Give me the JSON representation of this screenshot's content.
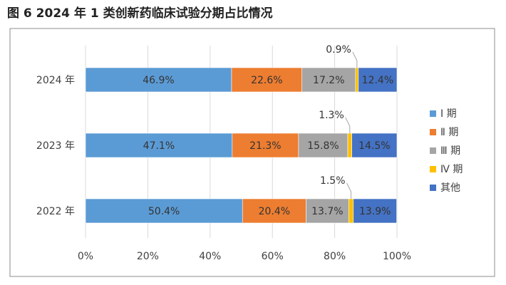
{
  "figure": {
    "title": "图 6   2024 年 1 类创新药临床试验分期占比情况"
  },
  "chart_data": {
    "type": "bar",
    "orientation": "horizontal",
    "stacked": true,
    "percent": true,
    "categories": [
      "2024 年",
      "2023 年",
      "2022 年"
    ],
    "xlim": [
      0,
      100
    ],
    "xticks": [
      "0%",
      "20%",
      "40%",
      "60%",
      "80%",
      "100%"
    ],
    "grid": true,
    "legend_position": "right",
    "series": [
      {
        "name": "Ⅰ 期",
        "color": "#5B9BD5",
        "values": [
          46.9,
          47.1,
          50.4
        ],
        "labels": [
          "46.9%",
          "47.1%",
          "50.4%"
        ]
      },
      {
        "name": "Ⅱ 期",
        "color": "#ED7D31",
        "values": [
          22.6,
          21.3,
          20.4
        ],
        "labels": [
          "22.6%",
          "21.3%",
          "20.4%"
        ]
      },
      {
        "name": "Ⅲ 期",
        "color": "#A5A5A5",
        "values": [
          17.2,
          15.8,
          13.7
        ],
        "labels": [
          "17.2%",
          "15.8%",
          "13.7%"
        ]
      },
      {
        "name": "Ⅳ 期",
        "color": "#FFC000",
        "values": [
          0.9,
          1.3,
          1.5
        ],
        "labels": [
          "0.9%",
          "1.3%",
          "1.5%"
        ]
      },
      {
        "name": "其他",
        "color": "#4472C4",
        "values": [
          12.4,
          14.5,
          13.9
        ],
        "labels": [
          "12.4%",
          "14.5%",
          "13.9%"
        ]
      }
    ]
  }
}
